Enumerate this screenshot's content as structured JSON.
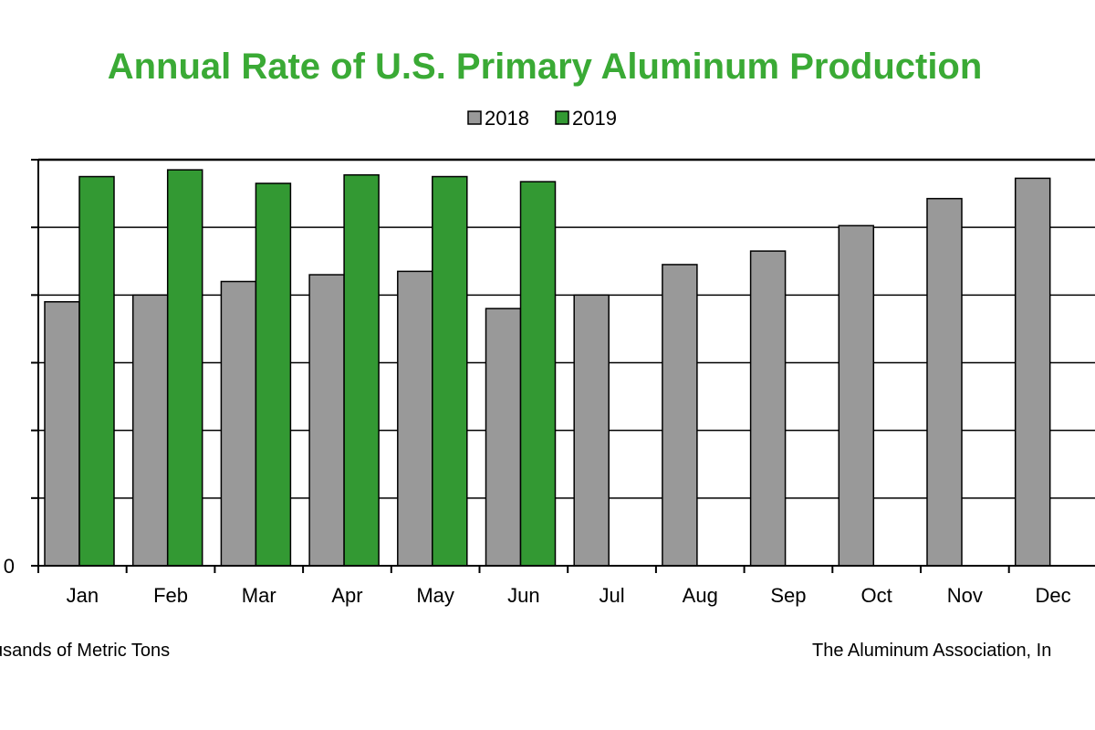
{
  "colors": {
    "series_2018": "#999999",
    "series_2019": "#339933",
    "title": "#3aaa35"
  },
  "chart_data": {
    "type": "bar",
    "title": "Annual Rate of U.S. Primary Aluminum Production",
    "categories": [
      "Jan",
      "Feb",
      "Mar",
      "Apr",
      "May",
      "Jun",
      "Jul",
      "Aug",
      "Sep",
      "Oct",
      "Nov",
      "Dec"
    ],
    "series": [
      {
        "name": "2018",
        "values": [
          780,
          800,
          840,
          860,
          870,
          760,
          800,
          890,
          930,
          1005,
          1085,
          1145
        ]
      },
      {
        "name": "2019",
        "values": [
          1150,
          1170,
          1130,
          1155,
          1150,
          1135,
          null,
          null,
          null,
          null,
          null,
          null
        ]
      }
    ],
    "ylim": [
      0,
      1200
    ],
    "yticks": [
      "0",
      "",
      "",
      "",
      "",
      "",
      ""
    ],
    "y_tick_values": [
      0,
      200,
      400,
      600,
      800,
      1000,
      1200
    ],
    "grid": true,
    "legend": "top-center",
    "ylabel_note": "usands of Metric Tons",
    "source": "The Aluminum Association, In"
  }
}
